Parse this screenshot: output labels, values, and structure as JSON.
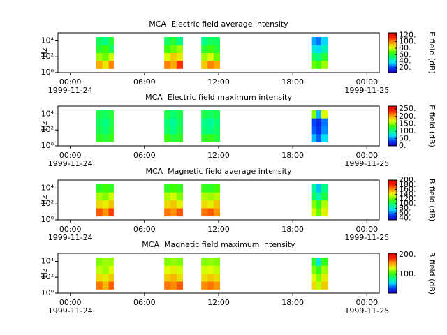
{
  "chart_data": [
    {
      "type": "heatmap",
      "title": "MCA  Electric field average intensity",
      "ylabel": "Hz",
      "colorbar_label": "E field (dB)",
      "xlim": [
        -1,
        25
      ],
      "xticks": [
        {
          "value": 0,
          "label": "00:00"
        },
        {
          "value": 6,
          "label": "06:00"
        },
        {
          "value": 12,
          "label": "12:00"
        },
        {
          "value": 18,
          "label": "18:00"
        },
        {
          "value": 24,
          "label": "00:00"
        }
      ],
      "date_labels": [
        {
          "value": 0,
          "label": "1999-11-24"
        },
        {
          "value": 24,
          "label": "1999-11-25"
        }
      ],
      "log_y": true,
      "ylim": [
        1,
        100000
      ],
      "yticks": [
        {
          "value": 1,
          "label": "10⁰"
        },
        {
          "value": 100,
          "label": "10²"
        },
        {
          "value": 10000,
          "label": "10⁴"
        }
      ],
      "zlim": [
        5,
        127
      ],
      "zticks": [
        {
          "value": 20,
          "label": "20."
        },
        {
          "value": 40,
          "label": "40."
        },
        {
          "value": 60,
          "label": "60."
        },
        {
          "value": 80,
          "label": "80."
        },
        {
          "value": 100,
          "label": "100."
        },
        {
          "value": 120,
          "label": "120."
        }
      ],
      "colormap": [
        "#1a00c0",
        "#0040ff",
        "#00e0ff",
        "#00ff80",
        "#40ff00",
        "#e0ff00",
        "#ffa000",
        "#ff2000",
        "#e00000"
      ],
      "blocks": [
        {
          "x_edges": [
            2.1,
            2.6,
            3.1,
            3.5
          ],
          "y_edges": [
            3,
            30,
            300,
            3000,
            30000
          ],
          "values": [
            [
              95,
              85,
              100
            ],
            [
              75,
              70,
              80
            ],
            [
              60,
              65,
              55
            ],
            [
              55,
              50,
              60
            ]
          ]
        },
        {
          "x_edges": [
            7.6,
            8.1,
            8.6,
            9.1
          ],
          "y_edges": [
            3,
            30,
            300,
            3000,
            30000
          ],
          "values": [
            [
              100,
              95,
              110
            ],
            [
              80,
              90,
              85
            ],
            [
              65,
              70,
              75
            ],
            [
              55,
              60,
              50
            ]
          ]
        },
        {
          "x_edges": [
            10.6,
            11.1,
            11.6,
            12.1
          ],
          "y_edges": [
            3,
            30,
            300,
            3000,
            30000
          ],
          "values": [
            [
              90,
              100,
              95
            ],
            [
              75,
              80,
              70
            ],
            [
              60,
              65,
              60
            ],
            [
              50,
              55,
              55
            ]
          ]
        },
        {
          "x_edges": [
            19.5,
            19.9,
            20.3,
            20.8
          ],
          "y_edges": [
            3,
            30,
            300,
            3000,
            30000
          ],
          "values": [
            [
              70,
              65,
              75
            ],
            [
              55,
              50,
              60
            ],
            [
              40,
              35,
              45
            ],
            [
              30,
              25,
              35
            ]
          ]
        }
      ]
    },
    {
      "type": "heatmap",
      "title": "MCA  Electric field maximum intensity",
      "ylabel": "Hz",
      "colorbar_label": "E field (dB)",
      "xlim": [
        -1,
        25
      ],
      "xticks": [
        {
          "value": 0,
          "label": "00:00"
        },
        {
          "value": 6,
          "label": "06:00"
        },
        {
          "value": 12,
          "label": "12:00"
        },
        {
          "value": 18,
          "label": "18:00"
        },
        {
          "value": 24,
          "label": "00:00"
        }
      ],
      "date_labels": [
        {
          "value": 0,
          "label": "1999-11-24"
        },
        {
          "value": 24,
          "label": "1999-11-25"
        }
      ],
      "log_y": true,
      "ylim": [
        1,
        100000
      ],
      "yticks": [
        {
          "value": 1,
          "label": "10⁰"
        },
        {
          "value": 100,
          "label": "10²"
        },
        {
          "value": 10000,
          "label": "10⁴"
        }
      ],
      "zlim": [
        0,
        270
      ],
      "zticks": [
        {
          "value": 0,
          "label": "0."
        },
        {
          "value": 50,
          "label": "50."
        },
        {
          "value": 100,
          "label": "100."
        },
        {
          "value": 150,
          "label": "150."
        },
        {
          "value": 200,
          "label": "200."
        },
        {
          "value": 250,
          "label": "250."
        }
      ],
      "colormap": [
        "#1a00c0",
        "#0040ff",
        "#00e0ff",
        "#00ff80",
        "#40ff00",
        "#e0ff00",
        "#ffa000",
        "#ff2000",
        "#e00000"
      ],
      "blocks": [
        {
          "x_edges": [
            2.1,
            2.6,
            3.1,
            3.5
          ],
          "y_edges": [
            3,
            30,
            300,
            3000,
            30000
          ],
          "values": [
            [
              125,
              120,
              130
            ],
            [
              115,
              105,
              120
            ],
            [
              110,
              100,
              115
            ],
            [
              115,
              110,
              120
            ]
          ]
        },
        {
          "x_edges": [
            7.6,
            8.1,
            8.6,
            9.1
          ],
          "y_edges": [
            3,
            30,
            300,
            3000,
            30000
          ],
          "values": [
            [
              130,
              120,
              125
            ],
            [
              110,
              100,
              115
            ],
            [
              105,
              95,
              110
            ],
            [
              115,
              105,
              115
            ]
          ]
        },
        {
          "x_edges": [
            10.6,
            11.1,
            11.6,
            12.1
          ],
          "y_edges": [
            3,
            30,
            300,
            3000,
            30000
          ],
          "values": [
            [
              125,
              130,
              120
            ],
            [
              105,
              100,
              110
            ],
            [
              100,
              95,
              105
            ],
            [
              115,
              110,
              115
            ]
          ]
        },
        {
          "x_edges": [
            19.5,
            19.9,
            20.3,
            20.8
          ],
          "y_edges": [
            3,
            30,
            300,
            3000,
            30000
          ],
          "values": [
            [
              60,
              40,
              70
            ],
            [
              40,
              25,
              50
            ],
            [
              35,
              20,
              45
            ],
            [
              150,
              60,
              170
            ]
          ]
        }
      ]
    },
    {
      "type": "heatmap",
      "title": "MCA  Magnetic field average intensity",
      "ylabel": "Hz",
      "colorbar_label": "B field (dB)",
      "xlim": [
        -1,
        25
      ],
      "xticks": [
        {
          "value": 0,
          "label": "00:00"
        },
        {
          "value": 6,
          "label": "06:00"
        },
        {
          "value": 12,
          "label": "12:00"
        },
        {
          "value": 18,
          "label": "18:00"
        },
        {
          "value": 24,
          "label": "00:00"
        }
      ],
      "date_labels": [
        {
          "value": 0,
          "label": "1999-11-24"
        },
        {
          "value": 24,
          "label": "1999-11-25"
        }
      ],
      "log_y": true,
      "ylim": [
        1,
        100000
      ],
      "yticks": [
        {
          "value": 1,
          "label": "10⁰"
        },
        {
          "value": 100,
          "label": "10²"
        },
        {
          "value": 10000,
          "label": "10⁴"
        }
      ],
      "zlim": [
        32,
        200
      ],
      "zticks": [
        {
          "value": 40,
          "label": "40."
        },
        {
          "value": 60,
          "label": "60."
        },
        {
          "value": 80,
          "label": "80."
        },
        {
          "value": 100,
          "label": "100."
        },
        {
          "value": 120,
          "label": "120."
        },
        {
          "value": 140,
          "label": "140."
        },
        {
          "value": 160,
          "label": "160."
        },
        {
          "value": 180,
          "label": "180."
        },
        {
          "value": 200,
          "label": "200."
        }
      ],
      "colormap": [
        "#1a00c0",
        "#0040ff",
        "#00e0ff",
        "#00ff80",
        "#40ff00",
        "#e0ff00",
        "#ffa000",
        "#ff2000",
        "#e00000"
      ],
      "blocks": [
        {
          "x_edges": [
            2.1,
            2.6,
            3.1,
            3.5
          ],
          "y_edges": [
            3,
            30,
            300,
            3000,
            30000
          ],
          "values": [
            [
              170,
              160,
              175
            ],
            [
              145,
              140,
              150
            ],
            [
              130,
              125,
              135
            ],
            [
              110,
              115,
              110
            ]
          ]
        },
        {
          "x_edges": [
            7.6,
            8.1,
            8.6,
            9.1
          ],
          "y_edges": [
            3,
            30,
            300,
            3000,
            30000
          ],
          "values": [
            [
              165,
              160,
              170
            ],
            [
              145,
              150,
              140
            ],
            [
              130,
              135,
              125
            ],
            [
              110,
              115,
              112
            ]
          ]
        },
        {
          "x_edges": [
            10.6,
            11.1,
            11.6,
            12.1
          ],
          "y_edges": [
            3,
            30,
            300,
            3000,
            30000
          ],
          "values": [
            [
              165,
              170,
              160
            ],
            [
              145,
              140,
              150
            ],
            [
              130,
              128,
              132
            ],
            [
              112,
              110,
              115
            ]
          ]
        },
        {
          "x_edges": [
            19.5,
            19.9,
            20.3,
            20.8
          ],
          "y_edges": [
            3,
            30,
            300,
            3000,
            30000
          ],
          "values": [
            [
              135,
              120,
              140
            ],
            [
              125,
              110,
              130
            ],
            [
              100,
              85,
              105
            ],
            [
              90,
              70,
              95
            ]
          ]
        }
      ]
    },
    {
      "type": "heatmap",
      "title": "MCA  Magnetic field maximum intensity",
      "ylabel": "Hz",
      "colorbar_label": "B field (dB)",
      "xlim": [
        -1,
        25
      ],
      "xticks": [
        {
          "value": 0,
          "label": "00:00"
        },
        {
          "value": 6,
          "label": "06:00"
        },
        {
          "value": 12,
          "label": "12:00"
        },
        {
          "value": 18,
          "label": "18:00"
        },
        {
          "value": 24,
          "label": "00:00"
        }
      ],
      "date_labels": [
        {
          "value": 0,
          "label": "1999-11-24"
        },
        {
          "value": 24,
          "label": "1999-11-25"
        }
      ],
      "log_y": true,
      "ylim": [
        1,
        100000
      ],
      "yticks": [
        {
          "value": 1,
          "label": "10⁰"
        },
        {
          "value": 100,
          "label": "10²"
        },
        {
          "value": 10000,
          "label": "10⁴"
        }
      ],
      "zlim": [
        3,
        207
      ],
      "zticks": [
        {
          "value": 100,
          "label": "100."
        },
        {
          "value": 200,
          "label": "200."
        }
      ],
      "colormap": [
        "#1a00c0",
        "#0040ff",
        "#00e0ff",
        "#00ff80",
        "#40ff00",
        "#e0ff00",
        "#ffa000",
        "#ff2000",
        "#e00000"
      ],
      "blocks": [
        {
          "x_edges": [
            2.1,
            2.6,
            3.1,
            3.5
          ],
          "y_edges": [
            3,
            30,
            300,
            3000,
            30000
          ],
          "values": [
            [
              165,
              150,
              170
            ],
            [
              140,
              135,
              145
            ],
            [
              125,
              120,
              130
            ],
            [
              115,
              120,
              118
            ]
          ]
        },
        {
          "x_edges": [
            7.6,
            8.1,
            8.6,
            9.1
          ],
          "y_edges": [
            3,
            30,
            300,
            3000,
            30000
          ],
          "values": [
            [
              165,
              160,
              170
            ],
            [
              145,
              150,
              140
            ],
            [
              130,
              135,
              128
            ],
            [
              115,
              118,
              115
            ]
          ]
        },
        {
          "x_edges": [
            10.6,
            11.1,
            11.6,
            12.1
          ],
          "y_edges": [
            3,
            30,
            300,
            3000,
            30000
          ],
          "values": [
            [
              160,
              165,
              158
            ],
            [
              140,
              145,
              140
            ],
            [
              128,
              130,
              125
            ],
            [
              115,
              118,
              115
            ]
          ]
        },
        {
          "x_edges": [
            19.5,
            19.9,
            20.3,
            20.8
          ],
          "y_edges": [
            3,
            30,
            300,
            3000,
            30000
          ],
          "values": [
            [
              140,
              125,
              145
            ],
            [
              130,
              115,
              135
            ],
            [
              115,
              100,
              120
            ],
            [
              95,
              60,
              100
            ]
          ]
        }
      ]
    }
  ]
}
